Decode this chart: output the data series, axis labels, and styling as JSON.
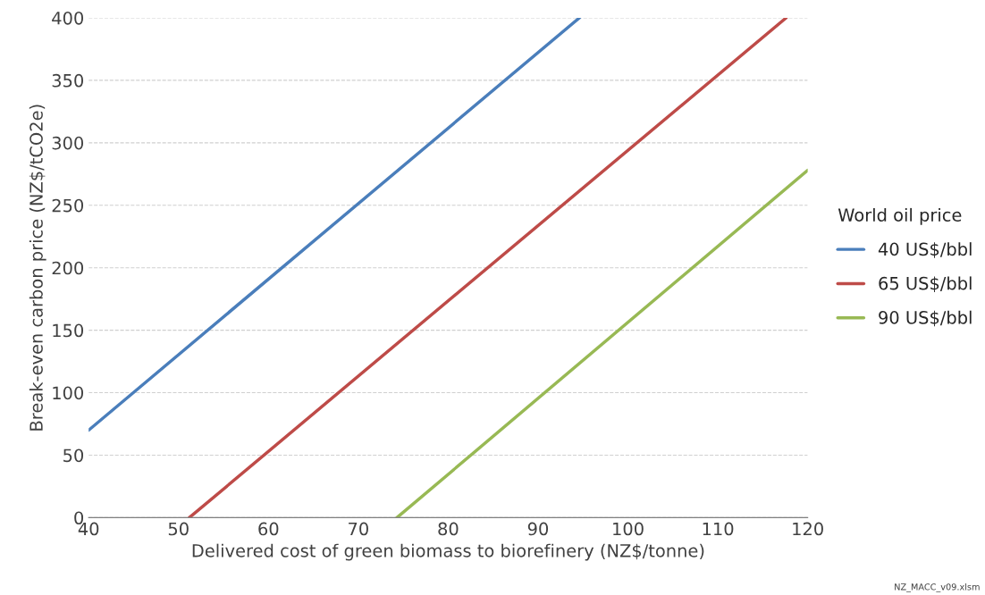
{
  "chart_data": {
    "type": "line",
    "xlabel": "Delivered cost of green biomass to biorefinery (NZ$/tonne)",
    "ylabel": "Break-even carbon price (NZ$/tCO2e)",
    "legend_title": "World oil price",
    "series": [
      {
        "name": "40 US$/bbl",
        "color": "#4a7ebb",
        "x": [
          40,
          94.6
        ],
        "values": [
          70,
          400
        ]
      },
      {
        "name": "65 US$/bbl",
        "color": "#be4b48",
        "x": [
          51.2,
          117.6
        ],
        "values": [
          0,
          400
        ]
      },
      {
        "name": "90 US$/bbl",
        "color": "#98b954",
        "x": [
          74.3,
          120
        ],
        "values": [
          0,
          278
        ]
      }
    ],
    "xlim": [
      40,
      120
    ],
    "xticks": [
      40,
      50,
      60,
      70,
      80,
      90,
      100,
      110,
      120
    ],
    "ylim": [
      0,
      400
    ],
    "yticks": [
      0,
      50,
      100,
      150,
      200,
      250,
      300,
      350,
      400
    ],
    "grid": "y",
    "legend": "right",
    "marker": "none",
    "line_style": "solid",
    "annotations": [
      "NZ_MACC_v09.xlsm"
    ]
  }
}
